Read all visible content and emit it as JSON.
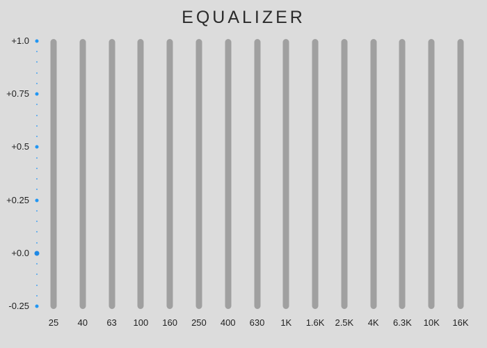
{
  "title": "EQUALIZER",
  "scale": {
    "labels": [
      "+1.0",
      "+0.75",
      "+0.5",
      "+0.25",
      "+0.0",
      "-0.25"
    ],
    "values": [
      1.0,
      0.75,
      0.5,
      0.25,
      0.0,
      -0.25
    ],
    "min": -0.25,
    "max": 1.0
  },
  "bands": [
    {
      "label": "25"
    },
    {
      "label": "40"
    },
    {
      "label": "63"
    },
    {
      "label": "100"
    },
    {
      "label": "160"
    },
    {
      "label": "250"
    },
    {
      "label": "400"
    },
    {
      "label": "630"
    },
    {
      "label": "1K"
    },
    {
      "label": "1.6K"
    },
    {
      "label": "2.5K"
    },
    {
      "label": "4K"
    },
    {
      "label": "6.3K"
    },
    {
      "label": "10K"
    },
    {
      "label": "16K"
    }
  ],
  "colors": {
    "background": "#dcdcdc",
    "slider_track": "#a0a0a0",
    "scale_dot": "#2196f3",
    "text": "#1f1f1f"
  }
}
